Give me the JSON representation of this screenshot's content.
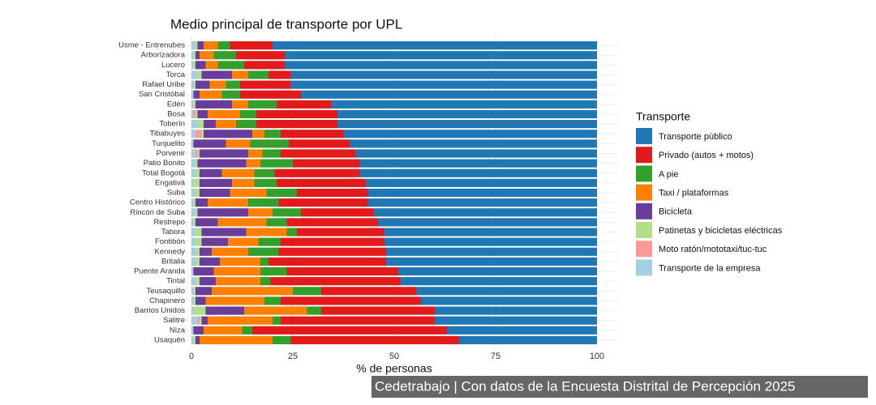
{
  "chart_data": {
    "type": "stacked-barh",
    "title": "Medio principal de transporte por UPL",
    "xlabel": "% de personas",
    "legend_title": "Transporte",
    "caption": "Cedetrabajo | Con datos de la Encuesta Distrital de Percepción 2025",
    "xlim": [
      0,
      100
    ],
    "xticks": [
      0,
      25,
      50,
      75,
      100
    ],
    "grid": true,
    "legend": "right",
    "categories": [
      "Usme - Entrenubes",
      "Arborizadora",
      "Lucero",
      "Torca",
      "Rafael Uribe",
      "San Cristóbal",
      "Edén",
      "Bosa",
      "Toberín",
      "Tibabuyes",
      "Tunjuelito",
      "Porvenir",
      "Patio Bonito",
      "Total Bogotá",
      "Engativá",
      "Suba",
      "Centro Histórico",
      "Rincón de Suba",
      "Restrepo",
      "Tabora",
      "Fontibón",
      "Kennedy",
      "Britalia",
      "Puente Aranda",
      "Tintal",
      "Teusaquillo",
      "Chapinero",
      "Barrios Unidos",
      "Salitre",
      "Niza",
      "Usaquén"
    ],
    "series": [
      {
        "name": "Transporte público",
        "color": "#1f78b4",
        "values": [
          80,
          77,
          77,
          75.5,
          75.5,
          73,
          65.5,
          64,
          64,
          62.5,
          61,
          59.5,
          58.5,
          58.5,
          57,
          56.5,
          56.5,
          55,
          54,
          52.5,
          52.5,
          52,
          52,
          49,
          48.5,
          44.5,
          43.5,
          40,
          40,
          37,
          34
        ]
      },
      {
        "name": "Privado (autos + motos)",
        "color": "#e31a1c",
        "values": [
          10.5,
          12,
          10,
          5.5,
          12.5,
          15,
          13.5,
          20,
          20,
          15.5,
          15,
          18.5,
          16.5,
          21,
          22,
          17.5,
          22,
          18,
          22.5,
          21.5,
          25.5,
          26.5,
          29,
          27.5,
          32,
          23.5,
          34.5,
          28,
          38,
          48,
          41.5
        ]
      },
      {
        "name": "A pie",
        "color": "#33a02c",
        "values": [
          3,
          5.5,
          6.5,
          5,
          3.5,
          4.5,
          7,
          4,
          5,
          4,
          9.5,
          4.5,
          8,
          5,
          5.5,
          7.5,
          7.5,
          7,
          5,
          2.5,
          5.5,
          7.5,
          2,
          6.5,
          2.5,
          7,
          4,
          3.5,
          2,
          2.5,
          4.5
        ]
      },
      {
        "name": "Taxi / plataformas",
        "color": "#ff7f00",
        "values": [
          3.5,
          3.5,
          3,
          4,
          4,
          5.5,
          4,
          8,
          5,
          3,
          6,
          3.5,
          3.5,
          8,
          5.5,
          9,
          10,
          6,
          12,
          10,
          7.5,
          9,
          10,
          11.5,
          11,
          20,
          14.5,
          15.5,
          16,
          9.5,
          18
        ]
      },
      {
        "name": "Bicicleta",
        "color": "#6a3d9a",
        "values": [
          1.5,
          1,
          2.5,
          7.5,
          3.5,
          1.5,
          9,
          2.5,
          3,
          12,
          8,
          12,
          12,
          5.5,
          8,
          7.5,
          3,
          12.5,
          5.5,
          11,
          6.5,
          3,
          5,
          5,
          4,
          4,
          2.5,
          9.5,
          1.5,
          2.5,
          1
        ]
      },
      {
        "name": "Patinetas y bicicletas eléctricas",
        "color": "#b2df8a",
        "values": [
          0.5,
          0.5,
          0.5,
          1,
          0.5,
          0,
          0.5,
          0.5,
          1.5,
          0.5,
          0,
          0.5,
          0.5,
          1,
          1.5,
          1,
          0.5,
          0.5,
          0.5,
          1.5,
          1.5,
          1,
          1,
          0,
          1,
          0.5,
          0.5,
          3,
          0.5,
          0,
          0.5
        ]
      },
      {
        "name": "Moto ratón/mototaxi/tuc-tuc",
        "color": "#fb9a99",
        "values": [
          0,
          0,
          0,
          0,
          0,
          0,
          0,
          0.5,
          0,
          1.5,
          0,
          0.5,
          0,
          0,
          0,
          0,
          0,
          0,
          0,
          0,
          0,
          0,
          0,
          0,
          0,
          0,
          0,
          0,
          0.5,
          0,
          0
        ]
      },
      {
        "name": "Transporte de la empresa",
        "color": "#a6cee3",
        "values": [
          1,
          0.5,
          0.5,
          1.5,
          0.5,
          0.5,
          0.5,
          0.5,
          1.5,
          1,
          0.5,
          1,
          1,
          1,
          0.5,
          1,
          0.5,
          1,
          0.5,
          1,
          1,
          1,
          1,
          0.5,
          1,
          0.5,
          0.5,
          0.5,
          1.5,
          0.5,
          0.5
        ]
      }
    ]
  }
}
